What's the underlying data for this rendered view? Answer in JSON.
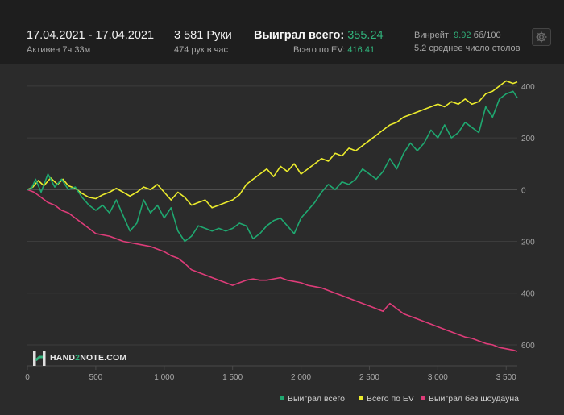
{
  "header": {
    "date_range": "17.04.2021 - 17.04.2021",
    "active_time": "Активен 7ч 33м",
    "hands": "3 581 Руки",
    "hands_per_hour": "474 рук в час",
    "won_label": "Выиграл всего:",
    "won_value": "355.24",
    "ev_label": "Всего по EV:",
    "ev_value": "416.41",
    "winrate_label": "Винрейт:",
    "winrate_value": "9.92",
    "winrate_unit": "бб/100",
    "tables_avg": "5.2 среднее число столов"
  },
  "logo": {
    "text_a": "HAND",
    "text_b": "2",
    "text_c": "NOTE.COM"
  },
  "colors": {
    "won": "#1fa870",
    "ev": "#ecec2c",
    "no_showdown": "#de3c79",
    "accent": "#31b27b"
  },
  "chart_data": {
    "type": "line",
    "xlabel": "",
    "ylabel": "",
    "xlim": [
      0,
      3581
    ],
    "ylim": [
      -650,
      440
    ],
    "x_ticks": [
      0,
      500,
      1000,
      1500,
      2000,
      2500,
      3000,
      3500
    ],
    "x_tick_labels": [
      "0",
      "500",
      "1 000",
      "1 500",
      "2 000",
      "2 500",
      "3 000",
      "3 500"
    ],
    "y_ticks": [
      400,
      200,
      0,
      -200,
      -400,
      -600
    ],
    "y_tick_labels": [
      "400",
      "200",
      "0",
      "200",
      "400",
      "600"
    ],
    "legend_position": "bottom-right",
    "grid": true,
    "series": [
      {
        "name": "Выиграл всего",
        "color": "#1fa870",
        "points": [
          [
            0,
            0
          ],
          [
            30,
            5
          ],
          [
            60,
            40
          ],
          [
            100,
            -10
          ],
          [
            150,
            60
          ],
          [
            200,
            10
          ],
          [
            250,
            40
          ],
          [
            300,
            0
          ],
          [
            350,
            10
          ],
          [
            400,
            -30
          ],
          [
            450,
            -60
          ],
          [
            500,
            -80
          ],
          [
            550,
            -60
          ],
          [
            600,
            -90
          ],
          [
            650,
            -40
          ],
          [
            700,
            -100
          ],
          [
            750,
            -160
          ],
          [
            800,
            -130
          ],
          [
            850,
            -40
          ],
          [
            900,
            -90
          ],
          [
            950,
            -60
          ],
          [
            1000,
            -110
          ],
          [
            1050,
            -70
          ],
          [
            1100,
            -160
          ],
          [
            1150,
            -200
          ],
          [
            1200,
            -180
          ],
          [
            1250,
            -140
          ],
          [
            1300,
            -150
          ],
          [
            1350,
            -160
          ],
          [
            1400,
            -150
          ],
          [
            1450,
            -160
          ],
          [
            1500,
            -150
          ],
          [
            1550,
            -130
          ],
          [
            1600,
            -140
          ],
          [
            1650,
            -190
          ],
          [
            1700,
            -170
          ],
          [
            1750,
            -140
          ],
          [
            1800,
            -120
          ],
          [
            1850,
            -110
          ],
          [
            1900,
            -140
          ],
          [
            1950,
            -170
          ],
          [
            2000,
            -110
          ],
          [
            2050,
            -80
          ],
          [
            2100,
            -50
          ],
          [
            2150,
            -10
          ],
          [
            2200,
            20
          ],
          [
            2250,
            0
          ],
          [
            2300,
            30
          ],
          [
            2350,
            20
          ],
          [
            2400,
            40
          ],
          [
            2450,
            80
          ],
          [
            2500,
            60
          ],
          [
            2550,
            40
          ],
          [
            2600,
            70
          ],
          [
            2650,
            120
          ],
          [
            2700,
            80
          ],
          [
            2750,
            140
          ],
          [
            2800,
            180
          ],
          [
            2850,
            150
          ],
          [
            2900,
            180
          ],
          [
            2950,
            230
          ],
          [
            3000,
            200
          ],
          [
            3050,
            250
          ],
          [
            3100,
            200
          ],
          [
            3150,
            220
          ],
          [
            3200,
            260
          ],
          [
            3250,
            240
          ],
          [
            3300,
            220
          ],
          [
            3350,
            320
          ],
          [
            3400,
            280
          ],
          [
            3450,
            350
          ],
          [
            3500,
            370
          ],
          [
            3550,
            380
          ],
          [
            3581,
            355
          ]
        ]
      },
      {
        "name": "Всего по EV",
        "color": "#ecec2c",
        "points": [
          [
            0,
            0
          ],
          [
            40,
            10
          ],
          [
            80,
            35
          ],
          [
            120,
            15
          ],
          [
            170,
            45
          ],
          [
            220,
            20
          ],
          [
            260,
            40
          ],
          [
            300,
            15
          ],
          [
            350,
            5
          ],
          [
            400,
            -15
          ],
          [
            450,
            -30
          ],
          [
            500,
            -35
          ],
          [
            550,
            -20
          ],
          [
            600,
            -10
          ],
          [
            650,
            5
          ],
          [
            700,
            -10
          ],
          [
            750,
            -25
          ],
          [
            800,
            -10
          ],
          [
            850,
            10
          ],
          [
            900,
            0
          ],
          [
            950,
            20
          ],
          [
            1000,
            -10
          ],
          [
            1050,
            -40
          ],
          [
            1100,
            -10
          ],
          [
            1150,
            -30
          ],
          [
            1200,
            -60
          ],
          [
            1250,
            -50
          ],
          [
            1300,
            -40
          ],
          [
            1350,
            -70
          ],
          [
            1400,
            -60
          ],
          [
            1450,
            -50
          ],
          [
            1500,
            -40
          ],
          [
            1550,
            -20
          ],
          [
            1600,
            20
          ],
          [
            1650,
            40
          ],
          [
            1700,
            60
          ],
          [
            1750,
            80
          ],
          [
            1800,
            50
          ],
          [
            1850,
            90
          ],
          [
            1900,
            70
          ],
          [
            1950,
            100
          ],
          [
            2000,
            60
          ],
          [
            2050,
            80
          ],
          [
            2100,
            100
          ],
          [
            2150,
            120
          ],
          [
            2200,
            110
          ],
          [
            2250,
            140
          ],
          [
            2300,
            130
          ],
          [
            2350,
            160
          ],
          [
            2400,
            150
          ],
          [
            2450,
            170
          ],
          [
            2500,
            190
          ],
          [
            2550,
            210
          ],
          [
            2600,
            230
          ],
          [
            2650,
            250
          ],
          [
            2700,
            260
          ],
          [
            2750,
            280
          ],
          [
            2800,
            290
          ],
          [
            2850,
            300
          ],
          [
            2900,
            310
          ],
          [
            2950,
            320
          ],
          [
            3000,
            330
          ],
          [
            3050,
            320
          ],
          [
            3100,
            340
          ],
          [
            3150,
            330
          ],
          [
            3200,
            350
          ],
          [
            3250,
            330
          ],
          [
            3300,
            340
          ],
          [
            3350,
            370
          ],
          [
            3400,
            380
          ],
          [
            3450,
            400
          ],
          [
            3500,
            420
          ],
          [
            3550,
            410
          ],
          [
            3581,
            416
          ]
        ]
      },
      {
        "name": "Выиграл без шоудауна",
        "color": "#de3c79",
        "points": [
          [
            0,
            0
          ],
          [
            50,
            -10
          ],
          [
            100,
            -30
          ],
          [
            150,
            -50
          ],
          [
            200,
            -60
          ],
          [
            250,
            -80
          ],
          [
            300,
            -90
          ],
          [
            350,
            -110
          ],
          [
            400,
            -130
          ],
          [
            450,
            -150
          ],
          [
            500,
            -170
          ],
          [
            550,
            -175
          ],
          [
            600,
            -180
          ],
          [
            650,
            -190
          ],
          [
            700,
            -200
          ],
          [
            750,
            -205
          ],
          [
            800,
            -210
          ],
          [
            850,
            -215
          ],
          [
            900,
            -220
          ],
          [
            950,
            -230
          ],
          [
            1000,
            -240
          ],
          [
            1050,
            -255
          ],
          [
            1100,
            -265
          ],
          [
            1150,
            -285
          ],
          [
            1200,
            -310
          ],
          [
            1250,
            -320
          ],
          [
            1300,
            -330
          ],
          [
            1350,
            -340
          ],
          [
            1400,
            -350
          ],
          [
            1450,
            -360
          ],
          [
            1500,
            -370
          ],
          [
            1550,
            -360
          ],
          [
            1600,
            -350
          ],
          [
            1650,
            -345
          ],
          [
            1700,
            -350
          ],
          [
            1750,
            -350
          ],
          [
            1800,
            -345
          ],
          [
            1850,
            -340
          ],
          [
            1900,
            -350
          ],
          [
            1950,
            -355
          ],
          [
            2000,
            -360
          ],
          [
            2050,
            -370
          ],
          [
            2100,
            -375
          ],
          [
            2150,
            -380
          ],
          [
            2200,
            -390
          ],
          [
            2250,
            -400
          ],
          [
            2300,
            -410
          ],
          [
            2350,
            -420
          ],
          [
            2400,
            -430
          ],
          [
            2450,
            -440
          ],
          [
            2500,
            -450
          ],
          [
            2550,
            -460
          ],
          [
            2600,
            -470
          ],
          [
            2650,
            -440
          ],
          [
            2700,
            -460
          ],
          [
            2750,
            -480
          ],
          [
            2800,
            -490
          ],
          [
            2850,
            -500
          ],
          [
            2900,
            -510
          ],
          [
            2950,
            -520
          ],
          [
            3000,
            -530
          ],
          [
            3050,
            -540
          ],
          [
            3100,
            -550
          ],
          [
            3150,
            -560
          ],
          [
            3200,
            -570
          ],
          [
            3250,
            -575
          ],
          [
            3300,
            -585
          ],
          [
            3350,
            -595
          ],
          [
            3400,
            -600
          ],
          [
            3450,
            -610
          ],
          [
            3500,
            -615
          ],
          [
            3550,
            -620
          ],
          [
            3581,
            -625
          ]
        ]
      }
    ]
  }
}
